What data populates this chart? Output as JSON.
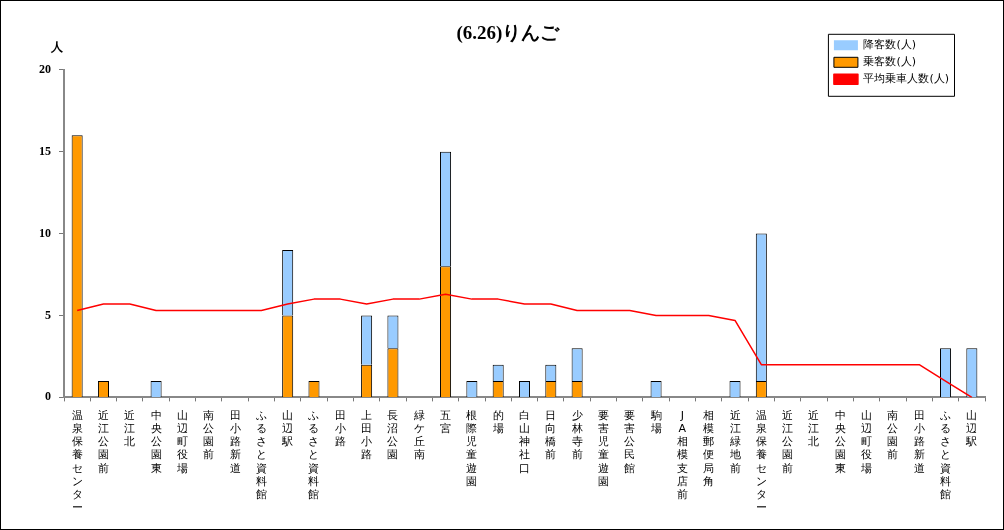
{
  "chart_data": {
    "type": "bar",
    "title": "(6.26)りんご",
    "ylabel": "人",
    "stacked": true,
    "categories": [
      "温泉保養センター",
      "近江公園前",
      "近江北",
      "中央公園東",
      "山辺町役場",
      "南公園前",
      "田小路新道",
      "ふるさと資料館",
      "山辺駅",
      "ふるさと資料館",
      "田小路",
      "上田小路",
      "長沼公園",
      "緑ケ丘南",
      "五宮",
      "根際児童遊園",
      "的場",
      "白山神社口",
      "日向橋前",
      "少林寺前",
      "要害児童遊園",
      "要害公民館",
      "駒場",
      "JA相模支店前",
      "相模郵便局角",
      "近江緑地前",
      "温泉保養センター",
      "近江公園前",
      "近江北",
      "中央公園東",
      "山辺町役場",
      "南公園前",
      "田小路新道",
      "ふるさと資料館",
      "山辺駅"
    ],
    "series": [
      {
        "name": "乗客数(人)",
        "color": "#ff9900",
        "values": [
          16,
          1,
          0,
          0,
          0,
          0,
          0,
          0,
          5,
          1,
          0,
          2,
          3,
          0,
          8,
          0,
          1,
          0,
          1,
          1,
          0,
          0,
          0,
          0,
          0,
          0,
          1,
          0,
          0,
          0,
          0,
          0,
          0,
          0,
          0
        ]
      },
      {
        "name": "降客数(人)",
        "color": "#99ccff",
        "values": [
          0,
          0,
          0,
          1,
          0,
          0,
          0,
          0,
          4,
          0,
          0,
          3,
          2,
          0,
          7,
          1,
          1,
          1,
          1,
          2,
          0,
          0,
          1,
          0,
          0,
          1,
          9,
          0,
          0,
          0,
          0,
          0,
          0,
          3,
          3
        ]
      },
      {
        "name": "平均乗車人数(人)",
        "type": "line",
        "color": "#ff0000",
        "values": [
          5.3,
          5.7,
          5.7,
          5.3,
          5.3,
          5.3,
          5.3,
          5.3,
          5.7,
          6,
          6,
          5.7,
          6,
          6,
          6.3,
          6,
          6,
          5.7,
          5.7,
          5.3,
          5.3,
          5.3,
          5,
          5,
          5,
          4.7,
          2,
          2,
          2,
          2,
          2,
          2,
          2,
          1,
          0
        ]
      }
    ],
    "ylim": [
      0,
      20
    ],
    "yticks": [
      0,
      5,
      10,
      15,
      20
    ],
    "grid": false,
    "legend": "top right",
    "marker": "none"
  }
}
